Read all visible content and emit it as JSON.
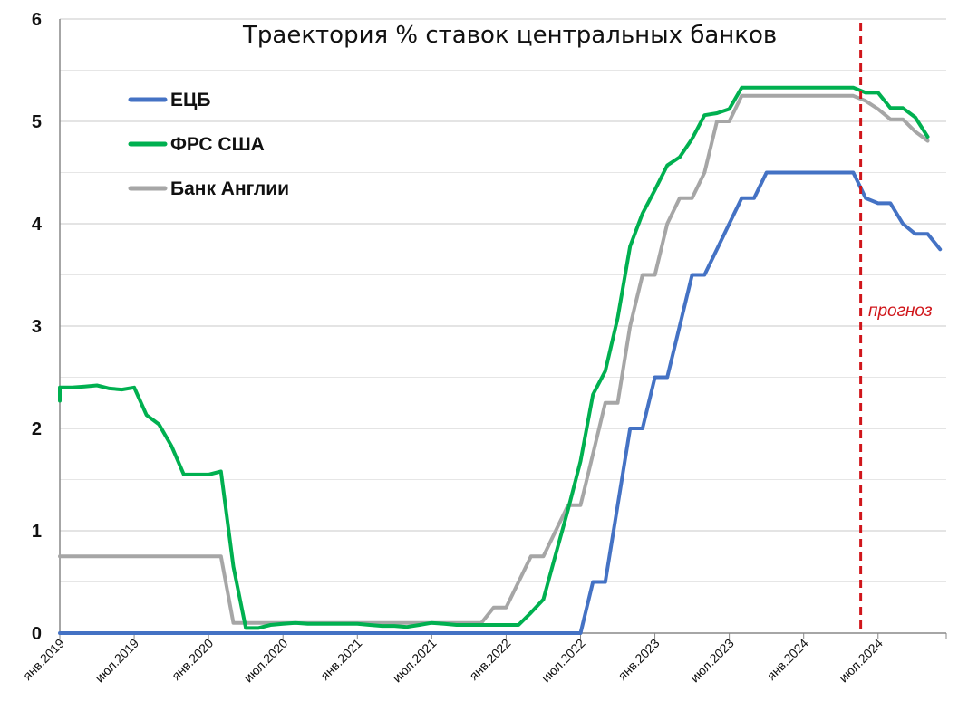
{
  "chart_data": {
    "type": "line",
    "title": "Траектория % ставок центральных банков",
    "xlabel": "",
    "ylabel": "",
    "ylim": [
      0,
      6
    ],
    "yticks": [
      "0",
      "1",
      "2",
      "3",
      "4",
      "5",
      "6"
    ],
    "xtick_labels": [
      "янв.2019",
      "июл.2019",
      "янв.2020",
      "июл.2020",
      "янв.2021",
      "июл.2021",
      "янв.2022",
      "июл.2022",
      "янв.2023",
      "июл.2023",
      "янв.2024",
      "июл.2024"
    ],
    "grid": "horizontal",
    "legend_position": "top-left",
    "forecast_label": "прогноз",
    "forecast_start": "2024-05",
    "series": [
      {
        "name": "ЕЦБ",
        "color": "#4472c4",
        "points": [
          [
            "2019-01",
            0
          ],
          [
            "2022-07",
            0
          ],
          [
            "2022-08",
            0.5
          ],
          [
            "2022-09",
            0.5
          ],
          [
            "2022-10",
            1.25
          ],
          [
            "2022-11",
            2.0
          ],
          [
            "2022-12",
            2.0
          ],
          [
            "2023-01",
            2.5
          ],
          [
            "2023-02",
            2.5
          ],
          [
            "2023-03",
            3.0
          ],
          [
            "2023-04",
            3.5
          ],
          [
            "2023-05",
            3.5
          ],
          [
            "2023-06",
            3.75
          ],
          [
            "2023-07",
            4.0
          ],
          [
            "2023-08",
            4.25
          ],
          [
            "2023-09",
            4.25
          ],
          [
            "2023-10",
            4.5
          ],
          [
            "2024-05",
            4.5
          ],
          [
            "2024-06",
            4.25
          ],
          [
            "2024-07",
            4.2
          ],
          [
            "2024-08",
            4.2
          ],
          [
            "2024-09",
            4.0
          ],
          [
            "2024-10",
            3.9
          ],
          [
            "2024-11",
            3.9
          ],
          [
            "2024-12",
            3.75
          ]
        ]
      },
      {
        "name": "ФРС США",
        "color": "#00b050",
        "points": [
          [
            "2018-12",
            2.27
          ],
          [
            "2019-01",
            2.4
          ],
          [
            "2019-02",
            2.4
          ],
          [
            "2019-03",
            2.41
          ],
          [
            "2019-04",
            2.42
          ],
          [
            "2019-05",
            2.39
          ],
          [
            "2019-06",
            2.38
          ],
          [
            "2019-07",
            2.4
          ],
          [
            "2019-08",
            2.13
          ],
          [
            "2019-09",
            2.04
          ],
          [
            "2019-10",
            1.83
          ],
          [
            "2019-11",
            1.55
          ],
          [
            "2019-12",
            1.55
          ],
          [
            "2020-01",
            1.55
          ],
          [
            "2020-02",
            1.58
          ],
          [
            "2020-03",
            0.65
          ],
          [
            "2020-04",
            0.05
          ],
          [
            "2020-05",
            0.05
          ],
          [
            "2020-06",
            0.08
          ],
          [
            "2020-07",
            0.09
          ],
          [
            "2020-08",
            0.1
          ],
          [
            "2020-09",
            0.09
          ],
          [
            "2020-10",
            0.09
          ],
          [
            "2020-11",
            0.09
          ],
          [
            "2020-12",
            0.09
          ],
          [
            "2021-01",
            0.09
          ],
          [
            "2021-02",
            0.08
          ],
          [
            "2021-03",
            0.07
          ],
          [
            "2021-04",
            0.07
          ],
          [
            "2021-05",
            0.06
          ],
          [
            "2021-06",
            0.08
          ],
          [
            "2021-07",
            0.1
          ],
          [
            "2021-08",
            0.09
          ],
          [
            "2021-09",
            0.08
          ],
          [
            "2021-10",
            0.08
          ],
          [
            "2021-11",
            0.08
          ],
          [
            "2021-12",
            0.08
          ],
          [
            "2022-01",
            0.08
          ],
          [
            "2022-02",
            0.08
          ],
          [
            "2022-03",
            0.2
          ],
          [
            "2022-04",
            0.33
          ],
          [
            "2022-05",
            0.77
          ],
          [
            "2022-06",
            1.21
          ],
          [
            "2022-07",
            1.68
          ],
          [
            "2022-08",
            2.33
          ],
          [
            "2022-09",
            2.56
          ],
          [
            "2022-10",
            3.08
          ],
          [
            "2022-11",
            3.78
          ],
          [
            "2022-12",
            4.1
          ],
          [
            "2023-01",
            4.33
          ],
          [
            "2023-02",
            4.57
          ],
          [
            "2023-03",
            4.65
          ],
          [
            "2023-04",
            4.83
          ],
          [
            "2023-05",
            5.06
          ],
          [
            "2023-06",
            5.08
          ],
          [
            "2023-07",
            5.12
          ],
          [
            "2023-08",
            5.33
          ],
          [
            "2024-05",
            5.33
          ],
          [
            "2024-06",
            5.28
          ],
          [
            "2024-07",
            5.28
          ],
          [
            "2024-08",
            5.13
          ],
          [
            "2024-09",
            5.13
          ],
          [
            "2024-10",
            5.04
          ],
          [
            "2024-11",
            4.85
          ]
        ]
      },
      {
        "name": "Банк Англии",
        "color": "#a6a6a6",
        "points": [
          [
            "2018-12",
            0.75
          ],
          [
            "2020-02",
            0.75
          ],
          [
            "2020-03",
            0.1
          ],
          [
            "2021-11",
            0.1
          ],
          [
            "2021-12",
            0.25
          ],
          [
            "2022-01",
            0.25
          ],
          [
            "2022-02",
            0.5
          ],
          [
            "2022-03",
            0.75
          ],
          [
            "2022-04",
            0.75
          ],
          [
            "2022-05",
            1.0
          ],
          [
            "2022-06",
            1.25
          ],
          [
            "2022-07",
            1.25
          ],
          [
            "2022-08",
            1.75
          ],
          [
            "2022-09",
            2.25
          ],
          [
            "2022-10",
            2.25
          ],
          [
            "2022-11",
            3.0
          ],
          [
            "2022-12",
            3.5
          ],
          [
            "2023-01",
            3.5
          ],
          [
            "2023-02",
            4.0
          ],
          [
            "2023-03",
            4.25
          ],
          [
            "2023-04",
            4.25
          ],
          [
            "2023-05",
            4.5
          ],
          [
            "2023-06",
            5.0
          ],
          [
            "2023-07",
            5.0
          ],
          [
            "2023-08",
            5.25
          ],
          [
            "2024-05",
            5.25
          ],
          [
            "2024-06",
            5.2
          ],
          [
            "2024-07",
            5.12
          ],
          [
            "2024-08",
            5.02
          ],
          [
            "2024-09",
            5.02
          ],
          [
            "2024-10",
            4.9
          ],
          [
            "2024-11",
            4.81
          ]
        ]
      }
    ]
  }
}
